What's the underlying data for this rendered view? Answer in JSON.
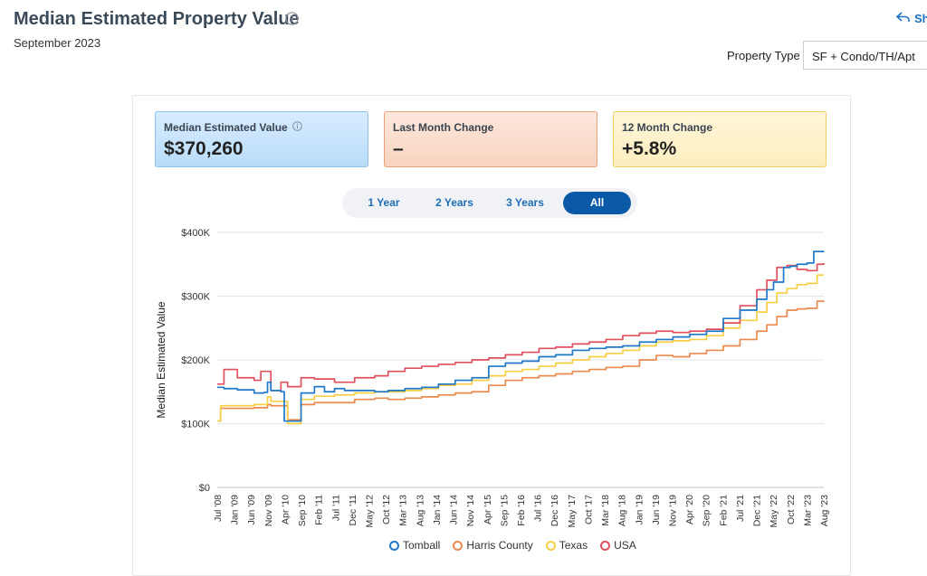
{
  "header": {
    "title": "Median Estimated Property Value",
    "subtitle": "September 2023",
    "share_label": "Sh",
    "property_type_label": "Property Type",
    "property_type_value": "SF + Condo/TH/Apt"
  },
  "cards": [
    {
      "label": "Median Estimated Value",
      "value": "$370,260"
    },
    {
      "label": "Last Month Change",
      "value": "–"
    },
    {
      "label": "12 Month Change",
      "value": "+5.8%"
    }
  ],
  "tabs": [
    {
      "label": "1 Year"
    },
    {
      "label": "2 Years"
    },
    {
      "label": "3 Years"
    },
    {
      "label": "All"
    }
  ],
  "colors": {
    "tomball": "#1f78c8",
    "harris": "#ea8a4f",
    "texas": "#f6cf45",
    "usa": "#e0505f"
  },
  "chart_data": {
    "type": "line",
    "ylabel": "Median Estimated Value",
    "xlabel": "",
    "ylim": [
      0,
      400000
    ],
    "yticks": [
      "$0",
      "$100K",
      "$200K",
      "$300K",
      "$400K"
    ],
    "x_start": "Jul '08",
    "x_end": "Aug '23",
    "x_ticks": [
      "Jul '08",
      "Jan '09",
      "Jun '09",
      "Nov '09",
      "Apr '10",
      "Sep '10",
      "Feb '11",
      "Jul '11",
      "Dec '11",
      "May '12",
      "Oct '12",
      "Mar '13",
      "Aug '13",
      "Jan '14",
      "Jun '14",
      "Nov '14",
      "Apr '15",
      "Sep '15",
      "Feb '16",
      "Jul '16",
      "Dec '16",
      "May '17",
      "Oct '17",
      "Mar '18",
      "Aug '18",
      "Jan '19",
      "Jun '19",
      "Nov '19",
      "Apr '20",
      "Sep '20",
      "Feb '21",
      "Jul '21",
      "Dec '21",
      "May '22",
      "Oct '22",
      "Mar '23",
      "Aug '23"
    ],
    "grid": true,
    "legend_position": "bottom",
    "series": [
      {
        "name": "Tomball",
        "x": [
          "2008-07",
          "2008-09",
          "2009-01",
          "2009-06",
          "2009-09",
          "2009-10",
          "2009-11",
          "2010-02",
          "2010-03",
          "2010-08",
          "2010-12",
          "2011-03",
          "2011-06",
          "2011-09",
          "2012-01",
          "2012-06",
          "2012-10",
          "2013-03",
          "2013-08",
          "2014-01",
          "2014-06",
          "2014-11",
          "2015-04",
          "2015-09",
          "2016-02",
          "2016-07",
          "2016-12",
          "2017-05",
          "2017-10",
          "2018-03",
          "2018-08",
          "2019-01",
          "2019-06",
          "2019-11",
          "2020-04",
          "2020-09",
          "2021-02",
          "2021-07",
          "2021-12",
          "2022-03",
          "2022-05",
          "2022-08",
          "2022-10",
          "2022-12",
          "2023-03",
          "2023-05",
          "2023-08"
        ],
        "values": [
          157000,
          155000,
          153000,
          148000,
          149000,
          165000,
          152000,
          150000,
          104000,
          148000,
          158000,
          150000,
          155000,
          152000,
          152000,
          150000,
          152000,
          155000,
          157000,
          162000,
          168000,
          172000,
          190000,
          195000,
          198000,
          205000,
          208000,
          215000,
          218000,
          220000,
          222000,
          228000,
          232000,
          236000,
          240000,
          245000,
          265000,
          278000,
          295000,
          310000,
          322000,
          345000,
          347000,
          350000,
          352000,
          370000,
          370260
        ]
      },
      {
        "name": "Harris County",
        "x": [
          "2008-07",
          "2008-08",
          "2009-01",
          "2009-06",
          "2009-10",
          "2009-11",
          "2010-03",
          "2010-04",
          "2010-08",
          "2010-12",
          "2011-06",
          "2011-12",
          "2012-06",
          "2012-10",
          "2013-03",
          "2013-08",
          "2014-01",
          "2014-06",
          "2014-11",
          "2015-04",
          "2015-09",
          "2016-02",
          "2016-07",
          "2016-12",
          "2017-05",
          "2017-10",
          "2018-03",
          "2018-08",
          "2019-01",
          "2019-06",
          "2019-11",
          "2020-04",
          "2020-09",
          "2021-02",
          "2021-07",
          "2021-12",
          "2022-03",
          "2022-06",
          "2022-09",
          "2022-12",
          "2023-03",
          "2023-06",
          "2023-08"
        ],
        "values": [
          104000,
          124000,
          124000,
          125000,
          130000,
          128000,
          128000,
          106000,
          130000,
          133000,
          133000,
          138000,
          140000,
          138000,
          140000,
          142000,
          145000,
          148000,
          150000,
          160000,
          168000,
          172000,
          175000,
          178000,
          182000,
          185000,
          188000,
          190000,
          200000,
          207000,
          205000,
          210000,
          215000,
          222000,
          232000,
          245000,
          255000,
          268000,
          278000,
          280000,
          281000,
          292000,
          293000
        ]
      },
      {
        "name": "Texas",
        "x": [
          "2008-07",
          "2008-08",
          "2009-01",
          "2009-06",
          "2009-10",
          "2009-11",
          "2010-03",
          "2010-04",
          "2010-08",
          "2010-12",
          "2011-06",
          "2011-12",
          "2012-06",
          "2012-10",
          "2013-03",
          "2013-08",
          "2014-01",
          "2014-06",
          "2014-11",
          "2015-04",
          "2015-09",
          "2016-02",
          "2016-07",
          "2016-12",
          "2017-05",
          "2017-10",
          "2018-03",
          "2018-08",
          "2019-01",
          "2019-06",
          "2019-11",
          "2020-04",
          "2020-09",
          "2021-02",
          "2021-07",
          "2021-12",
          "2022-03",
          "2022-06",
          "2022-09",
          "2022-12",
          "2023-03",
          "2023-06",
          "2023-08"
        ],
        "values": [
          104000,
          128000,
          128000,
          130000,
          142000,
          135000,
          135000,
          100000,
          138000,
          143000,
          145000,
          148000,
          150000,
          150000,
          152000,
          155000,
          160000,
          162000,
          168000,
          175000,
          182000,
          185000,
          190000,
          195000,
          200000,
          205000,
          210000,
          215000,
          222000,
          228000,
          230000,
          232000,
          238000,
          250000,
          262000,
          275000,
          290000,
          305000,
          312000,
          318000,
          320000,
          333000,
          333000
        ]
      },
      {
        "name": "USA",
        "x": [
          "2008-07",
          "2008-09",
          "2009-01",
          "2009-06",
          "2009-08",
          "2009-11",
          "2010-02",
          "2010-04",
          "2010-08",
          "2010-12",
          "2011-06",
          "2011-12",
          "2012-06",
          "2012-10",
          "2013-03",
          "2013-08",
          "2014-01",
          "2014-06",
          "2014-11",
          "2015-04",
          "2015-09",
          "2016-02",
          "2016-07",
          "2016-12",
          "2017-05",
          "2017-10",
          "2018-03",
          "2018-08",
          "2019-01",
          "2019-06",
          "2019-11",
          "2020-04",
          "2020-09",
          "2021-02",
          "2021-07",
          "2021-12",
          "2022-03",
          "2022-06",
          "2022-09",
          "2022-12",
          "2023-03",
          "2023-06",
          "2023-08"
        ],
        "values": [
          162000,
          185000,
          172000,
          168000,
          182000,
          152000,
          165000,
          158000,
          172000,
          170000,
          165000,
          172000,
          175000,
          182000,
          187000,
          190000,
          193000,
          196000,
          200000,
          203000,
          208000,
          212000,
          218000,
          220000,
          225000,
          228000,
          232000,
          238000,
          242000,
          245000,
          243000,
          245000,
          248000,
          258000,
          285000,
          310000,
          325000,
          345000,
          348000,
          342000,
          340000,
          350000,
          352000
        ]
      }
    ]
  }
}
